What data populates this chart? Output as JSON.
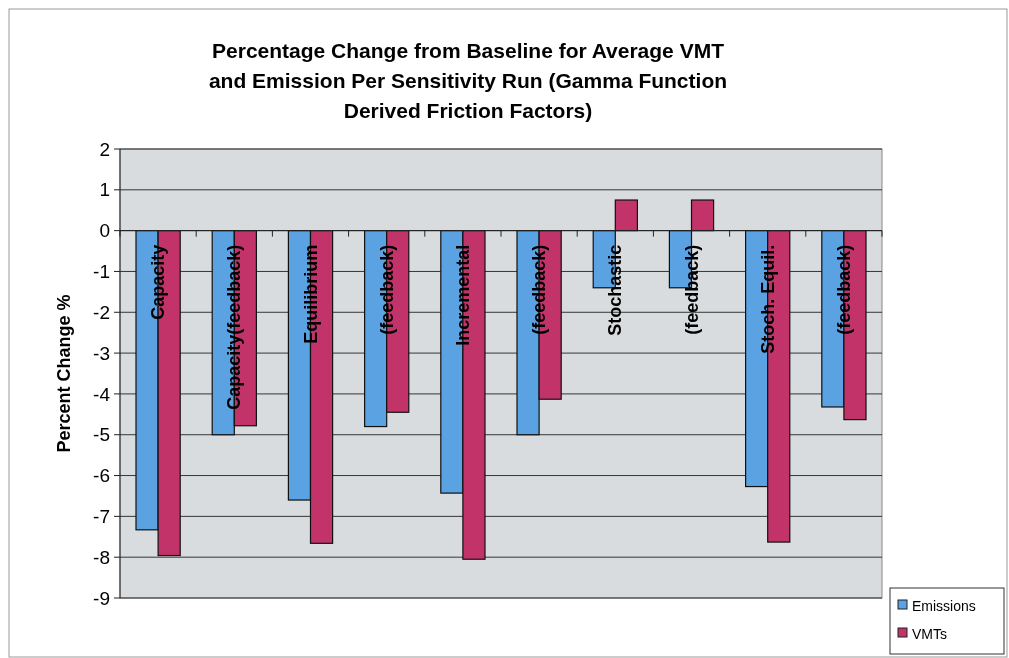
{
  "chart_data": {
    "type": "bar",
    "title": "Percentage Change from Baseline for Average VMT and Emission Per Sensitivity Run (Gamma Function Derived Friction Factors)",
    "ylabel": "Percent Change %",
    "categories": [
      "Capacity",
      "Capacity(feedback)",
      "Equilibrium",
      "(feedback)",
      "Incremental",
      "(feedback)",
      "Stochastic",
      "(feedback)",
      "Stoch. Equil.",
      "(feedback)"
    ],
    "series": [
      {
        "name": "Emissions",
        "color": "#5aa2e2",
        "values": [
          -7.33,
          -5.0,
          -6.6,
          -4.8,
          -6.43,
          -5.0,
          -1.4,
          -1.4,
          -6.27,
          -4.32
        ]
      },
      {
        "name": "VMTs",
        "color": "#c23469",
        "values": [
          -7.96,
          -4.78,
          -7.66,
          -4.45,
          -8.05,
          -4.13,
          0.75,
          0.75,
          -7.63,
          -4.63
        ]
      }
    ],
    "ylim": [
      -9,
      2
    ],
    "yticks": [
      -9,
      -8,
      -7,
      -6,
      -5,
      -4,
      -3,
      -2,
      -1,
      0,
      1,
      2
    ],
    "grid": "y",
    "legend": "bottom right"
  }
}
